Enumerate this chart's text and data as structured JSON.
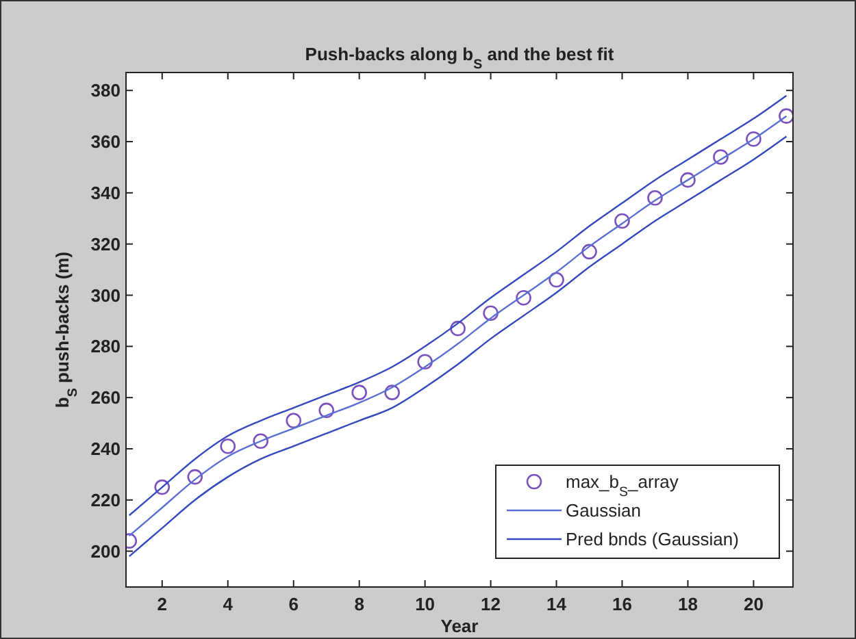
{
  "chart_data": {
    "type": "line",
    "title": "Push-backs along b$_{S}$ and the best fit",
    "xlabel": "Year",
    "ylabel": "b$_{S}$ push-backs (m)",
    "x": [
      1,
      2,
      3,
      4,
      5,
      6,
      7,
      8,
      9,
      10,
      11,
      12,
      13,
      14,
      15,
      16,
      17,
      18,
      19,
      20,
      21
    ],
    "xlim": [
      0.9,
      21.2
    ],
    "xticks": [
      2,
      4,
      6,
      8,
      10,
      12,
      14,
      16,
      18,
      20
    ],
    "ylim": [
      186,
      387
    ],
    "yticks": [
      200,
      220,
      240,
      260,
      280,
      300,
      320,
      340,
      360,
      380
    ],
    "grid": false,
    "legend": "bottom right",
    "series": [
      {
        "name": "max_b$_{S}$_array",
        "type": "scatter",
        "marker": "circle",
        "color": "#7a52c0",
        "values": [
          204,
          225,
          229,
          241,
          243,
          251,
          255,
          262,
          262,
          274,
          287,
          293,
          299,
          306,
          317,
          329,
          338,
          345,
          354,
          361,
          370
        ]
      },
      {
        "name": "Gaussian",
        "color": "#5a6fd2",
        "values": [
          206,
          217,
          228,
          237,
          243,
          248,
          253,
          258,
          264,
          272,
          281,
          291,
          300,
          309,
          319,
          328,
          337,
          345,
          353,
          361,
          370
        ]
      },
      {
        "name": "Pred bnds (Gaussian)",
        "color": "#3448bf",
        "values": [
          198,
          209,
          220,
          229,
          236,
          241,
          246,
          251,
          256,
          264,
          273,
          283,
          292,
          301,
          311,
          320,
          329,
          337,
          345,
          353,
          362
        ]
      },
      {
        "color": "#3448bf",
        "values": [
          214,
          225,
          236,
          245,
          251,
          256,
          261,
          266,
          272,
          280,
          289,
          299,
          308,
          317,
          327,
          336,
          345,
          353,
          361,
          369,
          378
        ]
      }
    ]
  }
}
